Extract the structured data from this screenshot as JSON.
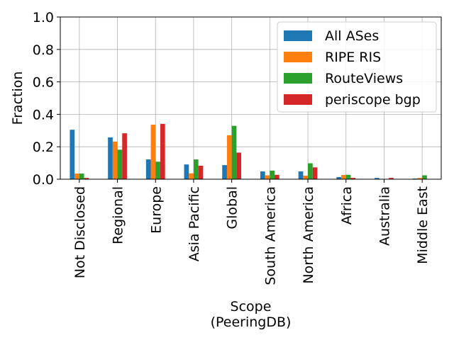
{
  "chart_data": {
    "type": "bar",
    "title": "",
    "xlabel": "Scope\n(PeeringDB)",
    "ylabel": "Fraction",
    "ylim": [
      0,
      1.0
    ],
    "yticks": [
      0.0,
      0.2,
      0.4,
      0.6,
      0.8,
      1.0
    ],
    "ytick_labels": [
      "0.0",
      "0.2",
      "0.4",
      "0.6",
      "0.8",
      "1.0"
    ],
    "grid": true,
    "legend_position": "top-right",
    "categories": [
      "Not Disclosed",
      "Regional",
      "Europe",
      "Asia Pacific",
      "Global",
      "South America",
      "North America",
      "Africa",
      "Australia",
      "Middle East"
    ],
    "series": [
      {
        "name": "All ASes",
        "color": "#1f77b4",
        "values": [
          0.305,
          0.258,
          0.122,
          0.091,
          0.087,
          0.048,
          0.048,
          0.013,
          0.008,
          0.004
        ]
      },
      {
        "name": "RIPE RIS",
        "color": "#ff7f0e",
        "values": [
          0.035,
          0.232,
          0.336,
          0.036,
          0.271,
          0.024,
          0.022,
          0.026,
          0.002,
          0.008
        ]
      },
      {
        "name": "RouteViews",
        "color": "#2ca02c",
        "values": [
          0.035,
          0.182,
          0.108,
          0.122,
          0.329,
          0.053,
          0.098,
          0.027,
          0.002,
          0.024
        ]
      },
      {
        "name": "periscope bgp",
        "color": "#d62728",
        "values": [
          0.008,
          0.283,
          0.341,
          0.083,
          0.164,
          0.027,
          0.073,
          0.008,
          0.008,
          0.002
        ]
      }
    ]
  }
}
